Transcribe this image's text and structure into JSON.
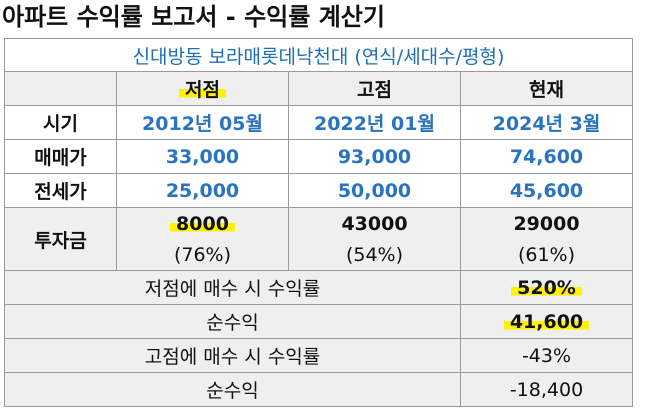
{
  "title": "아파트 수익률 보고서 - 수익률 계산기",
  "subtitle": "신대방동 보라매롯데낙천대 (연식/세대수/평형)",
  "columns": [
    "저점",
    "고점",
    "현재"
  ],
  "rows": [
    {
      "label": "시기",
      "values": [
        "2012년 05월",
        "2022년 01월",
        "2024년 3월"
      ]
    },
    {
      "label": "매매가",
      "values": [
        "33,000",
        "93,000",
        "74,600"
      ]
    },
    {
      "label": "전세가",
      "values": [
        "25,000",
        "50,000",
        "45,600"
      ]
    }
  ],
  "investment": {
    "label": "투자금",
    "amounts": [
      "8000",
      "43000",
      "29000"
    ],
    "ratios": [
      "(76%)",
      "(54%)",
      "(61%)"
    ]
  },
  "summary": [
    {
      "label": "저점에 매수 시 수익률",
      "value": "520%"
    },
    {
      "label": "순수익",
      "value": "41,600"
    },
    {
      "label": "고점에 매수 시 수익률",
      "value": "-43%"
    },
    {
      "label": "순수익",
      "value": "-18,400"
    }
  ],
  "colors": {
    "blue_text": "#2a73c0",
    "highlight": "#fff200",
    "header_bg": "#efefef"
  }
}
